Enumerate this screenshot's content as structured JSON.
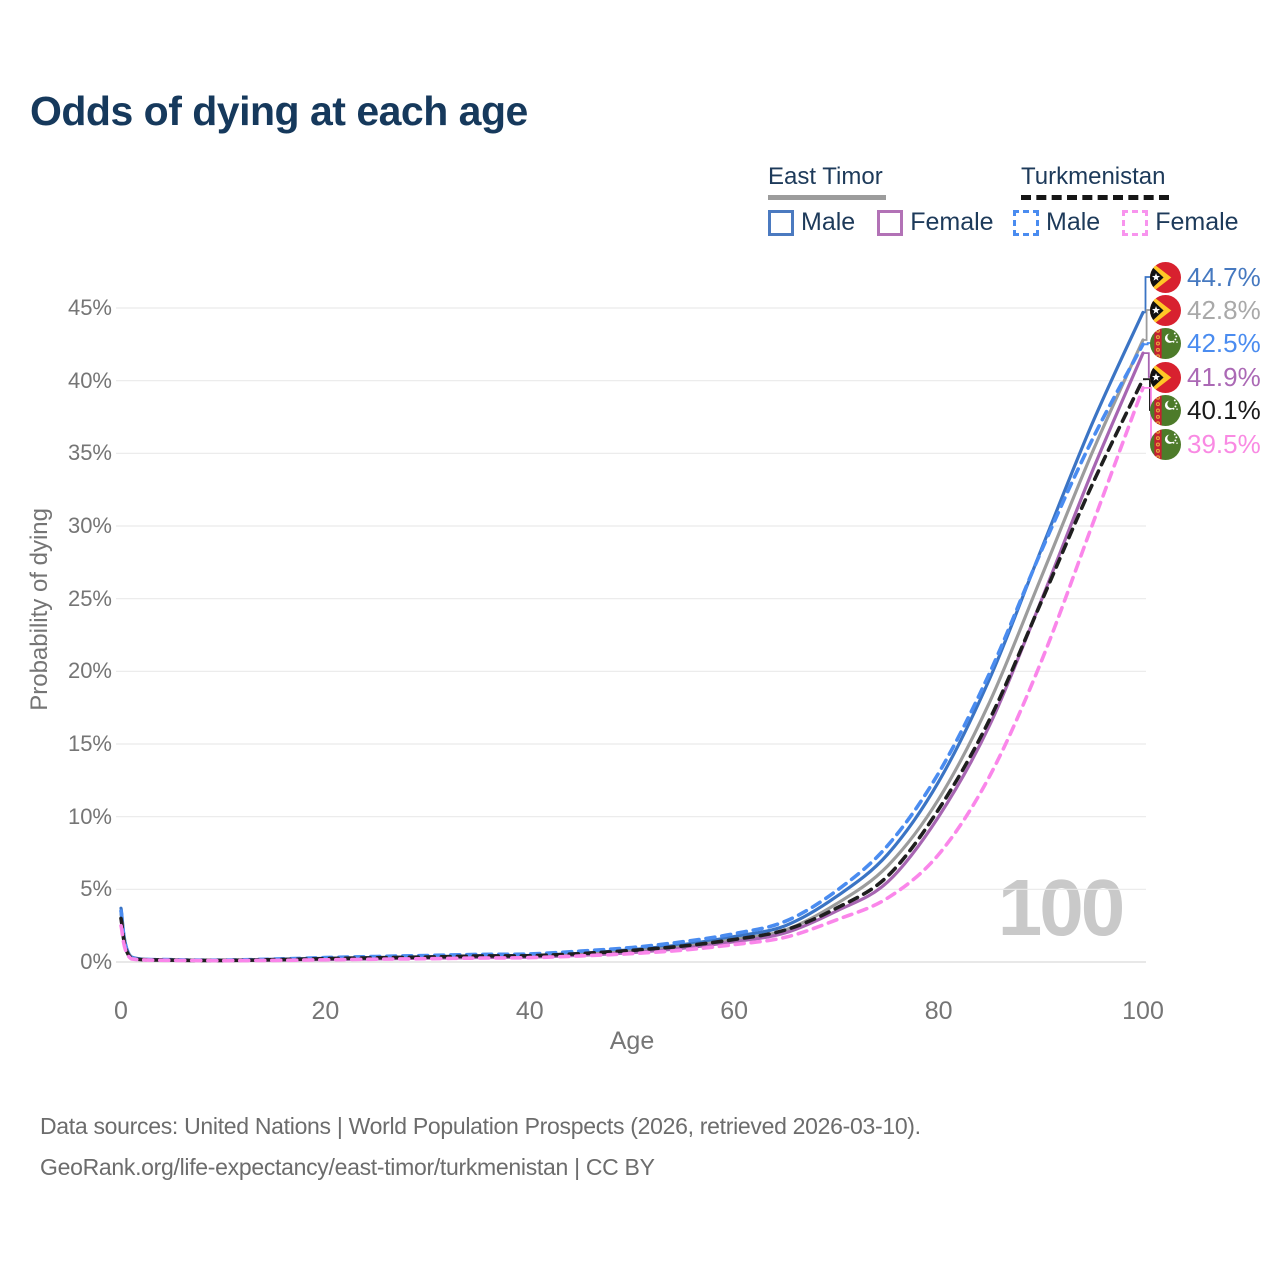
{
  "header": {
    "title": "Odds of dying at each age"
  },
  "legend": {
    "groups": [
      {
        "title": "East Timor",
        "line_style": "solid",
        "underline_color": "#9c9c9c",
        "items": [
          {
            "label": "Male",
            "color": "#3b74c4"
          },
          {
            "label": "Female",
            "color": "#a765b2"
          }
        ]
      },
      {
        "title": "Turkmenistan",
        "line_style": "dashed",
        "underline_color": "#161616",
        "items": [
          {
            "label": "Male",
            "color": "#4a8cf0"
          },
          {
            "label": "Female",
            "color": "#fa86ea"
          }
        ]
      }
    ]
  },
  "chart_data": {
    "type": "line",
    "title": "Odds of dying at each age",
    "xlabel": "Age",
    "ylabel": "Probability of dying",
    "xlim": [
      0,
      100
    ],
    "ylim": [
      0,
      47
    ],
    "x_ticks": [
      0,
      20,
      40,
      60,
      80,
      100
    ],
    "x_tick_labels": [
      "0",
      "20",
      "40",
      "60",
      "80",
      "100"
    ],
    "y_ticks": [
      0,
      5,
      10,
      15,
      20,
      25,
      30,
      35,
      40,
      45
    ],
    "y_tick_labels": [
      "0%",
      "5%",
      "10%",
      "15%",
      "20%",
      "25%",
      "30%",
      "35%",
      "40%",
      "45%"
    ],
    "grid": "horizontal-only",
    "legend_position": "top-right",
    "watermark": "100",
    "x": [
      0,
      1,
      5,
      10,
      15,
      20,
      25,
      30,
      35,
      40,
      45,
      50,
      55,
      60,
      65,
      70,
      75,
      80,
      85,
      90,
      95,
      100
    ],
    "series": [
      {
        "name": "East Timor Male",
        "country": "east-timor",
        "sex": "male",
        "color": "#3b74c4",
        "label_color": "#4679c0",
        "dash": "solid",
        "end_label": "44.7%",
        "end_value": 44.7,
        "flag": "east-timor",
        "values": [
          3.7,
          0.35,
          0.15,
          0.12,
          0.18,
          0.25,
          0.3,
          0.35,
          0.42,
          0.45,
          0.6,
          0.85,
          1.2,
          1.75,
          2.5,
          4.5,
          7.4,
          12.4,
          19.5,
          28.3,
          37.0,
          44.7
        ]
      },
      {
        "name": "East Timor Both sexes",
        "country": "east-timor",
        "sex": "both",
        "color": "#9c9c9c",
        "label_color": "#a9a9a9",
        "dash": "solid",
        "end_label": "42.8%",
        "end_value": 42.8,
        "flag": "east-timor",
        "values": [
          3.3,
          0.31,
          0.13,
          0.11,
          0.15,
          0.21,
          0.26,
          0.3,
          0.36,
          0.4,
          0.53,
          0.75,
          1.05,
          1.55,
          2.2,
          4.0,
          6.6,
          11.2,
          17.9,
          26.4,
          35.0,
          42.8
        ]
      },
      {
        "name": "Turkmenistan Male",
        "country": "turkmenistan",
        "sex": "male",
        "color": "#4a8cf0",
        "label_color": "#4a8cf0",
        "dash": "dashed",
        "end_label": "42.5%",
        "end_value": 42.5,
        "flag": "turkmenistan",
        "values": [
          3.5,
          0.3,
          0.16,
          0.13,
          0.2,
          0.3,
          0.38,
          0.45,
          0.52,
          0.55,
          0.75,
          1.0,
          1.4,
          1.95,
          2.8,
          4.9,
          8.0,
          13.0,
          19.9,
          28.2,
          35.9,
          42.5
        ]
      },
      {
        "name": "East Timor Female",
        "country": "east-timor",
        "sex": "female",
        "color": "#a765b2",
        "label_color": "#ab69b5",
        "dash": "solid",
        "end_label": "41.9%",
        "end_value": 41.9,
        "flag": "east-timor",
        "values": [
          2.9,
          0.27,
          0.12,
          0.1,
          0.13,
          0.17,
          0.21,
          0.26,
          0.31,
          0.34,
          0.46,
          0.65,
          0.95,
          1.4,
          2.0,
          3.5,
          5.5,
          10.0,
          16.3,
          24.8,
          33.7,
          41.9
        ]
      },
      {
        "name": "Turkmenistan Both sexes",
        "country": "turkmenistan",
        "sex": "both",
        "color": "#1f1f1f",
        "label_color": "#1a1a1a",
        "dash": "dashed",
        "end_label": "40.1%",
        "end_value": 40.1,
        "flag": "turkmenistan",
        "values": [
          3.0,
          0.26,
          0.13,
          0.11,
          0.16,
          0.23,
          0.29,
          0.34,
          0.41,
          0.43,
          0.58,
          0.8,
          1.1,
          1.55,
          2.2,
          3.7,
          5.9,
          10.5,
          16.7,
          24.7,
          32.8,
          40.1
        ]
      },
      {
        "name": "Turkmenistan Female",
        "country": "turkmenistan",
        "sex": "female",
        "color": "#fa86ea",
        "label_color": "#f98ae3",
        "dash": "dashed",
        "end_label": "39.5%",
        "end_value": 39.5,
        "flag": "turkmenistan",
        "values": [
          2.5,
          0.22,
          0.11,
          0.09,
          0.11,
          0.15,
          0.19,
          0.23,
          0.27,
          0.3,
          0.42,
          0.58,
          0.82,
          1.2,
          1.7,
          2.9,
          4.4,
          7.4,
          12.8,
          20.6,
          30.0,
          39.5
        ]
      }
    ]
  },
  "footer": {
    "line1": "Data sources: United Nations | World Population Prospects (2026, retrieved 2026-03-10).",
    "line2": "GeoRank.org/life-expectancy/east-timor/turkmenistan | CC BY"
  }
}
